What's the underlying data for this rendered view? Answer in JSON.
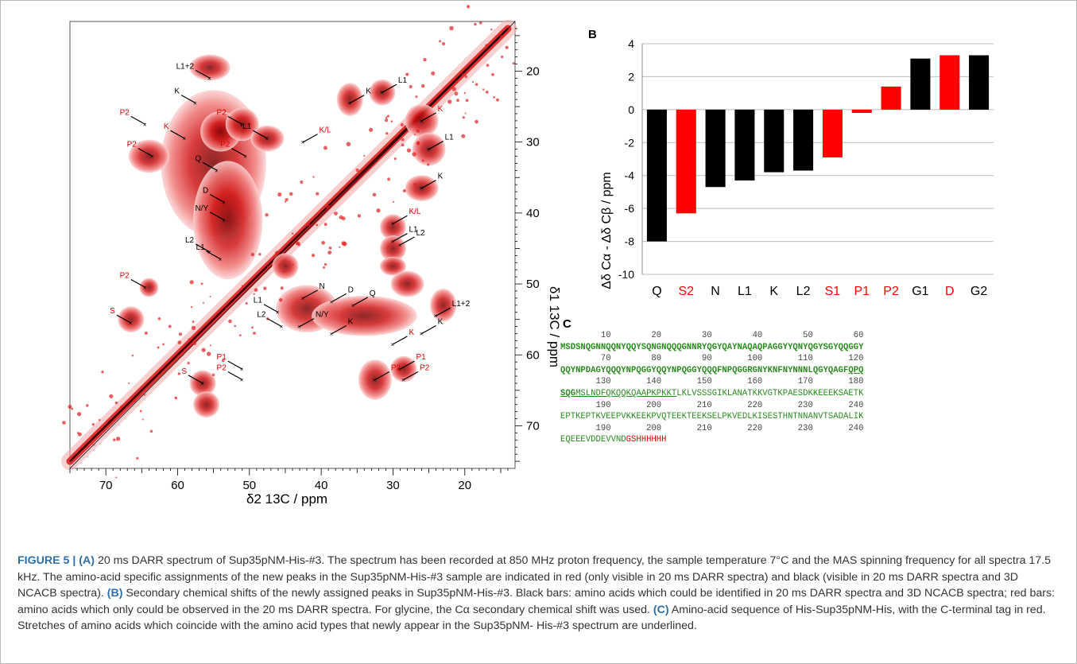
{
  "figure_label": "FIGURE 5 |",
  "panels": {
    "a": "A",
    "b": "B",
    "c": "C"
  },
  "chart_data": [
    {
      "type": "scatter",
      "panel": "A",
      "title": "",
      "xlabel": "δ2 13C / ppm",
      "ylabel": "δ1 13C / ppm",
      "xlim": [
        75,
        13
      ],
      "ylim": [
        13,
        76
      ],
      "x_ticks": [
        70,
        60,
        50,
        40,
        30,
        20
      ],
      "y_ticks": [
        20,
        30,
        40,
        50,
        60,
        70
      ],
      "peaks": [
        {
          "label": "L1+2",
          "x": 55.5,
          "y": 21,
          "color": "black"
        },
        {
          "label": "K",
          "x": 57.5,
          "y": 24.5,
          "color": "black"
        },
        {
          "label": "P2",
          "x": 64.5,
          "y": 27.5,
          "color": "red"
        },
        {
          "label": "K",
          "x": 59,
          "y": 29.5,
          "color": "red"
        },
        {
          "label": "P2",
          "x": 51,
          "y": 27.5,
          "color": "red"
        },
        {
          "label": "L1",
          "x": 47.5,
          "y": 29.5,
          "color": "black"
        },
        {
          "label": "K/L",
          "x": 42.5,
          "y": 30,
          "color": "red"
        },
        {
          "label": "P2",
          "x": 50.5,
          "y": 32,
          "color": "red"
        },
        {
          "label": "P2",
          "x": 63.5,
          "y": 32,
          "color": "red"
        },
        {
          "label": "Q",
          "x": 54.5,
          "y": 34,
          "color": "black"
        },
        {
          "label": "D",
          "x": 53.5,
          "y": 38.5,
          "color": "black"
        },
        {
          "label": "N/Y",
          "x": 53.5,
          "y": 41,
          "color": "black"
        },
        {
          "label": "L2",
          "x": 55.5,
          "y": 45.5,
          "color": "black"
        },
        {
          "label": "L1",
          "x": 54,
          "y": 46.5,
          "color": "black"
        },
        {
          "label": "P2",
          "x": 64.5,
          "y": 50.5,
          "color": "red"
        },
        {
          "label": "S",
          "x": 66.5,
          "y": 55.5,
          "color": "red"
        },
        {
          "label": "P1",
          "x": 51,
          "y": 62,
          "color": "red"
        },
        {
          "label": "P2",
          "x": 51,
          "y": 63.5,
          "color": "red"
        },
        {
          "label": "S",
          "x": 56.5,
          "y": 64,
          "color": "red"
        },
        {
          "label": "K",
          "x": 36,
          "y": 24.5,
          "color": "black"
        },
        {
          "label": "L1",
          "x": 31.5,
          "y": 23,
          "color": "black"
        },
        {
          "label": "K",
          "x": 26,
          "y": 27,
          "color": "red"
        },
        {
          "label": "L1",
          "x": 25,
          "y": 31,
          "color": "black"
        },
        {
          "label": "K",
          "x": 26,
          "y": 36.5,
          "color": "black"
        },
        {
          "label": "K/L",
          "x": 30,
          "y": 41.5,
          "color": "red"
        },
        {
          "label": "L1",
          "x": 30,
          "y": 44,
          "color": "black"
        },
        {
          "label": "L2",
          "x": 29,
          "y": 44.5,
          "color": "black"
        },
        {
          "label": "N",
          "x": 42.5,
          "y": 52,
          "color": "black"
        },
        {
          "label": "D",
          "x": 38.5,
          "y": 52.5,
          "color": "black"
        },
        {
          "label": "Q",
          "x": 35.5,
          "y": 53,
          "color": "black"
        },
        {
          "label": "L1",
          "x": 46,
          "y": 54,
          "color": "black"
        },
        {
          "label": "L2",
          "x": 45.5,
          "y": 56,
          "color": "black"
        },
        {
          "label": "N/Y",
          "x": 43,
          "y": 56,
          "color": "black"
        },
        {
          "label": "K",
          "x": 38.5,
          "y": 57,
          "color": "black"
        },
        {
          "label": "L1+2",
          "x": 24,
          "y": 54.5,
          "color": "black"
        },
        {
          "label": "K",
          "x": 26,
          "y": 57,
          "color": "black"
        },
        {
          "label": "K",
          "x": 30,
          "y": 58.5,
          "color": "red"
        },
        {
          "label": "P1",
          "x": 29,
          "y": 62,
          "color": "red"
        },
        {
          "label": "P2",
          "x": 28.5,
          "y": 63.5,
          "color": "red"
        },
        {
          "label": "P2",
          "x": 32.5,
          "y": 63.5,
          "color": "red"
        }
      ]
    },
    {
      "type": "bar",
      "panel": "B",
      "title": "",
      "xlabel": "",
      "ylabel": "Δδ Cα - Δδ Cβ / ppm",
      "ylim": [
        -10,
        4
      ],
      "y_ticks": [
        4,
        2,
        0,
        -2,
        -4,
        -6,
        -8,
        -10
      ],
      "grid": true,
      "categories": [
        "Q",
        "S2",
        "N",
        "L1",
        "K",
        "L2",
        "S1",
        "P1",
        "P2",
        "G1",
        "D",
        "G2"
      ],
      "values": [
        -8.0,
        -6.3,
        -4.7,
        -4.3,
        -3.8,
        -3.7,
        -2.9,
        -0.2,
        1.4,
        3.1,
        3.3,
        3.3
      ],
      "colors": [
        "black",
        "red",
        "black",
        "black",
        "black",
        "black",
        "red",
        "red",
        "red",
        "black",
        "red",
        "black"
      ]
    }
  ],
  "sequence": {
    "rows": [
      {
        "ticks": [
          "10",
          "20",
          "30",
          "40",
          "50",
          "60"
        ],
        "text": "MSDSNQGNNQQNYQQYSQNGNQQQGNNRYQGYQAYNAQAQPAGGYYQNYQGYSGYQQGGY"
      },
      {
        "ticks": [
          "70",
          "80",
          "90",
          "100",
          "110",
          "120"
        ],
        "text": "QQYNPDAGYQQQYNPQGGYQQYNPQGGYQQQFNPQGGRGNYKNFNYNNNLQGYQAGFQPQ"
      },
      {
        "ticks": [
          "130",
          "140",
          "150",
          "160",
          "170",
          "180"
        ],
        "text": "SQGMSLNDFQKQQKQAAPKPKKTLKLVSSSGIKLANATKKVGTKPAESDKKEEEKSAETK"
      },
      {
        "ticks": [
          "190",
          "200",
          "210",
          "220",
          "230",
          "240"
        ],
        "text": "EPTKEPTKVEEPVKKEEKPVQTEEKTEEKSELPKVEDLKISESTHNTNNANVTSADALIK"
      },
      {
        "ticks": [
          "190",
          "200",
          "210",
          "220",
          "230",
          "240"
        ],
        "text": "EQEEEVDDEVVNDGSHHHHHH"
      }
    ]
  },
  "caption": {
    "a_label": "(A)",
    "a_text": " 20 ms DARR spectrum of Sup35pNM-His-#3. The spectrum has been recorded at 850 MHz proton frequency, the sample temperature 7°C and the MAS spinning frequency for all spectra 17.5 kHz. The amino-acid specific assignments of the new peaks in the Sup35pNM-His-#3 sample are indicated in red (only visible in 20 ms DARR spectra) and black (visible in 20 ms DARR spectra and 3D NCACB spectra). ",
    "b_label": "(B)",
    "b_text": " Secondary chemical shifts of the newly assigned peaks in Sup35pNM-His-#3. Black bars: amino acids which could be identified in 20 ms DARR spectra and 3D NCACB spectra; red bars: amino acids which only could be observed in the 20 ms DARR spectra. For glycine, the Cα secondary chemical shift was used. ",
    "c_label": "(C)",
    "c_text": " Amino-acid sequence of His-Sup35pNM-His, with the C-terminal tag in red. Stretches of amino acids which coincide with the amino acid types that newly appear in the Sup35pNM- His-#3 spectrum are underlined."
  }
}
